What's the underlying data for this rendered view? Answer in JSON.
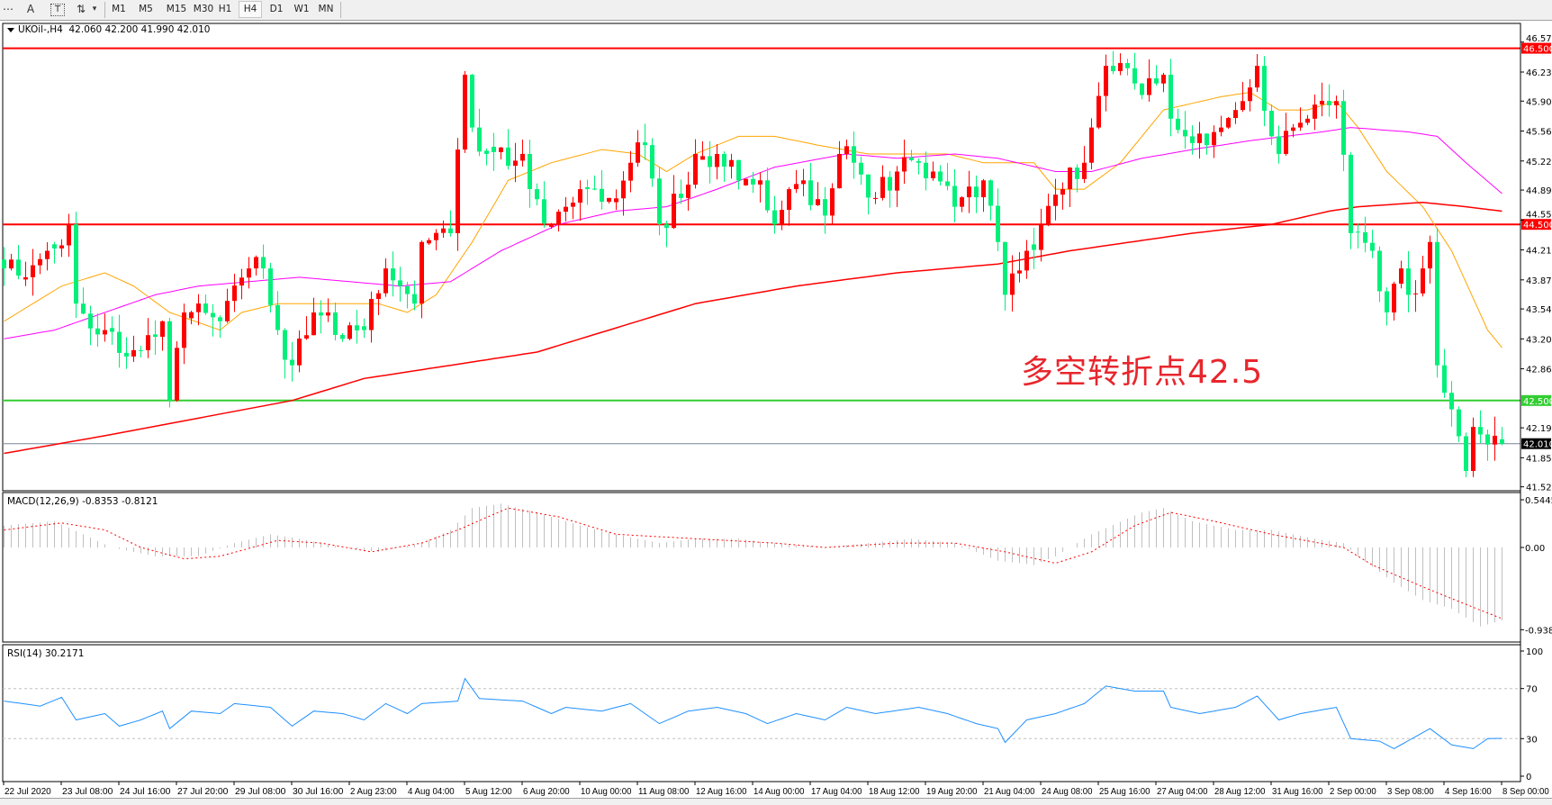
{
  "toolbar": {
    "tools": [
      {
        "icon": "period-separator-icon",
        "glyph": "⋯"
      },
      {
        "icon": "text-tool-icon",
        "glyph": "A"
      },
      {
        "icon": "text-label-tool-icon",
        "glyph": "T"
      },
      {
        "icon": "arrows-tool-icon",
        "glyph": "⇅"
      },
      {
        "icon": "dropdown-arrow-icon",
        "glyph": "▾"
      }
    ],
    "periods": [
      "M1",
      "M5",
      "M15",
      "M30",
      "H1",
      "H4",
      "D1",
      "W1",
      "MN"
    ],
    "active_period": "H4"
  },
  "chart": {
    "symbol": "UKOil-,H4",
    "ohlc_text": "42.060 42.200 41.990 42.010",
    "annotation": "多空转折点42.5",
    "macd_label": "MACD(12,26,9) -0.8353 -0.8121",
    "rsi_label": "RSI(14) 30.2171"
  },
  "chart_data": {
    "type": "candlestick",
    "instrument": "UKOil-",
    "timeframe": "H4",
    "colors": {
      "up": "#ff0000",
      "down": "#00f07a",
      "ma_fast": "#ffa500",
      "ma_mid": "#ff00ff",
      "ma_slow": "#ff0000",
      "rsi": "#1e90ff",
      "macd_hist": "#c0c0c0",
      "macd_signal": "#ff0000",
      "support": "#32cd32",
      "resistance": "#ff0000",
      "bid": "#778899"
    },
    "price_axis": {
      "min": 41.52,
      "max": 46.57,
      "ticks": [
        "46.570",
        "46.230",
        "45.900",
        "45.560",
        "45.220",
        "44.890",
        "44.550",
        "44.210",
        "43.870",
        "43.540",
        "43.200",
        "42.860",
        "42.190",
        "41.850",
        "41.520"
      ]
    },
    "time_axis": {
      "bars": 209,
      "bars_per_label": 8,
      "labels": [
        "22 Jul 2020",
        "23 Jul 08:00",
        "24 Jul 16:00",
        "27 Jul 20:00",
        "29 Jul 08:00",
        "30 Jul 16:00",
        "2 Aug 23:00",
        "4 Aug 04:00",
        "5 Aug 12:00",
        "6 Aug 20:00",
        "10 Aug 00:00",
        "11 Aug 08:00",
        "12 Aug 16:00",
        "14 Aug 00:00",
        "17 Aug 04:00",
        "18 Aug 12:00",
        "19 Aug 20:00",
        "21 Aug 04:00",
        "24 Aug 08:00",
        "25 Aug 16:00",
        "27 Aug 04:00",
        "28 Aug 12:00",
        "31 Aug 16:00",
        "2 Sep 00:00",
        "3 Sep 08:00",
        "4 Sep 16:00",
        "8 Sep 00:00"
      ]
    },
    "horizontal_lines": [
      {
        "price": 46.5,
        "label": "46.500",
        "kind": "resistance"
      },
      {
        "price": 44.5,
        "label": "44.500",
        "kind": "resistance"
      },
      {
        "price": 42.5,
        "label": "42.500",
        "kind": "support"
      },
      {
        "price": 42.01,
        "label": "42.010",
        "kind": "bid"
      }
    ],
    "close_path": [
      [
        0,
        44.0
      ],
      [
        1,
        44.1
      ],
      [
        3,
        43.9
      ],
      [
        6,
        44.2
      ],
      [
        9,
        44.5
      ],
      [
        10,
        43.6
      ],
      [
        14,
        43.3
      ],
      [
        17,
        43.0
      ],
      [
        22,
        43.4
      ],
      [
        23,
        42.5
      ],
      [
        25,
        43.5
      ],
      [
        30,
        43.4
      ],
      [
        34,
        44.0
      ],
      [
        36,
        44.0
      ],
      [
        38,
        43.3
      ],
      [
        40,
        42.9
      ],
      [
        43,
        43.5
      ],
      [
        45,
        43.5
      ],
      [
        47,
        43.2
      ],
      [
        50,
        43.3
      ],
      [
        53,
        44.0
      ],
      [
        55,
        43.8
      ],
      [
        57,
        43.6
      ],
      [
        58,
        44.3
      ],
      [
        62,
        44.4
      ],
      [
        64,
        46.2
      ],
      [
        65,
        45.6
      ],
      [
        67,
        45.3
      ],
      [
        72,
        45.3
      ],
      [
        73,
        44.9
      ],
      [
        76,
        44.5
      ],
      [
        78,
        44.7
      ],
      [
        81,
        44.9
      ],
      [
        84,
        44.8
      ],
      [
        87,
        45.2
      ],
      [
        89,
        45.4
      ],
      [
        91,
        44.5
      ],
      [
        94,
        44.8
      ],
      [
        96,
        45.3
      ],
      [
        99,
        45.3
      ],
      [
        102,
        45.0
      ],
      [
        105,
        45.0
      ],
      [
        107,
        44.5
      ],
      [
        109,
        44.9
      ],
      [
        111,
        45.0
      ],
      [
        114,
        44.6
      ],
      [
        116,
        45.3
      ],
      [
        118,
        45.2
      ],
      [
        121,
        44.8
      ],
      [
        124,
        45.1
      ],
      [
        127,
        45.2
      ],
      [
        129,
        45.1
      ],
      [
        132,
        44.7
      ],
      [
        136,
        45.0
      ],
      [
        138,
        44.3
      ],
      [
        139,
        43.7
      ],
      [
        142,
        44.2
      ],
      [
        144,
        44.5
      ],
      [
        147,
        44.9
      ],
      [
        150,
        45.2
      ],
      [
        151,
        45.6
      ],
      [
        153,
        46.3
      ],
      [
        157,
        46.1
      ],
      [
        160,
        46.1
      ],
      [
        161,
        46.2
      ],
      [
        162,
        45.7
      ],
      [
        164,
        45.5
      ],
      [
        167,
        45.4
      ],
      [
        169,
        45.6
      ],
      [
        172,
        45.9
      ],
      [
        174,
        46.3
      ],
      [
        176,
        45.5
      ],
      [
        177,
        45.3
      ],
      [
        179,
        45.6
      ],
      [
        181,
        45.7
      ],
      [
        185,
        45.9
      ],
      [
        187,
        44.4
      ],
      [
        190,
        44.2
      ],
      [
        192,
        43.5
      ],
      [
        194,
        44.0
      ],
      [
        195,
        43.7
      ],
      [
        197,
        44.0
      ],
      [
        198,
        44.3
      ],
      [
        199,
        42.9
      ],
      [
        201,
        42.4
      ],
      [
        203,
        41.7
      ],
      [
        204,
        42.2
      ],
      [
        206,
        42.0
      ],
      [
        207,
        42.1
      ],
      [
        208,
        42.01
      ]
    ],
    "last_bar": {
      "open": 42.06,
      "high": 42.2,
      "low": 41.99,
      "close": 42.01
    },
    "ma_fast": [
      [
        0,
        43.4
      ],
      [
        8,
        43.8
      ],
      [
        14,
        43.95
      ],
      [
        18,
        43.8
      ],
      [
        23,
        43.5
      ],
      [
        30,
        43.3
      ],
      [
        33,
        43.5
      ],
      [
        38,
        43.6
      ],
      [
        45,
        43.6
      ],
      [
        52,
        43.6
      ],
      [
        56,
        43.5
      ],
      [
        60,
        43.7
      ],
      [
        65,
        44.3
      ],
      [
        70,
        45.0
      ],
      [
        76,
        45.2
      ],
      [
        83,
        45.35
      ],
      [
        88,
        45.3
      ],
      [
        92,
        45.1
      ],
      [
        96,
        45.3
      ],
      [
        102,
        45.5
      ],
      [
        107,
        45.5
      ],
      [
        113,
        45.4
      ],
      [
        120,
        45.3
      ],
      [
        131,
        45.3
      ],
      [
        136,
        45.2
      ],
      [
        143,
        45.2
      ],
      [
        146,
        44.9
      ],
      [
        150,
        44.9
      ],
      [
        155,
        45.2
      ],
      [
        161,
        45.8
      ],
      [
        169,
        45.95
      ],
      [
        173,
        46.0
      ],
      [
        177,
        45.8
      ],
      [
        181,
        45.8
      ],
      [
        185,
        45.9
      ],
      [
        188,
        45.6
      ],
      [
        192,
        45.1
      ],
      [
        197,
        44.7
      ],
      [
        201,
        44.2
      ],
      [
        206,
        43.3
      ],
      [
        208,
        43.1
      ]
    ],
    "ma_mid": [
      [
        0,
        43.2
      ],
      [
        7,
        43.3
      ],
      [
        14,
        43.5
      ],
      [
        21,
        43.7
      ],
      [
        27,
        43.8
      ],
      [
        41,
        43.9
      ],
      [
        55,
        43.8
      ],
      [
        62,
        43.85
      ],
      [
        69,
        44.2
      ],
      [
        77,
        44.5
      ],
      [
        85,
        44.65
      ],
      [
        92,
        44.7
      ],
      [
        99,
        44.9
      ],
      [
        107,
        45.15
      ],
      [
        117,
        45.3
      ],
      [
        124,
        45.25
      ],
      [
        132,
        45.3
      ],
      [
        138,
        45.25
      ],
      [
        146,
        45.1
      ],
      [
        151,
        45.1
      ],
      [
        158,
        45.25
      ],
      [
        165,
        45.35
      ],
      [
        173,
        45.45
      ],
      [
        183,
        45.55
      ],
      [
        187,
        45.6
      ],
      [
        195,
        45.55
      ],
      [
        199,
        45.5
      ],
      [
        203,
        45.2
      ],
      [
        208,
        44.85
      ]
    ],
    "ma_slow": [
      [
        0,
        41.9
      ],
      [
        14,
        42.1
      ],
      [
        27,
        42.3
      ],
      [
        40,
        42.5
      ],
      [
        50,
        42.75
      ],
      [
        62,
        42.9
      ],
      [
        74,
        43.05
      ],
      [
        88,
        43.4
      ],
      [
        96,
        43.6
      ],
      [
        110,
        43.8
      ],
      [
        124,
        43.95
      ],
      [
        138,
        44.05
      ],
      [
        148,
        44.2
      ],
      [
        165,
        44.4
      ],
      [
        176,
        44.5
      ],
      [
        184,
        44.65
      ],
      [
        188,
        44.7
      ],
      [
        197,
        44.75
      ],
      [
        203,
        44.7
      ],
      [
        208,
        44.65
      ]
    ],
    "macd": {
      "params": "12,26,9",
      "axis": {
        "max": 0.5445,
        "zero": "0.00",
        "min": -0.9389,
        "tick_labels": [
          "0.5445",
          "0.00",
          "-0.9389"
        ]
      },
      "histogram": [
        [
          0,
          0.25
        ],
        [
          7,
          0.3
        ],
        [
          11,
          0.15
        ],
        [
          15,
          0.0
        ],
        [
          21,
          -0.1
        ],
        [
          27,
          -0.1
        ],
        [
          32,
          0.05
        ],
        [
          37,
          0.15
        ],
        [
          41,
          0.1
        ],
        [
          47,
          0.0
        ],
        [
          52,
          -0.05
        ],
        [
          58,
          0.05
        ],
        [
          62,
          0.2
        ],
        [
          65,
          0.45
        ],
        [
          69,
          0.5
        ],
        [
          74,
          0.4
        ],
        [
          80,
          0.25
        ],
        [
          85,
          0.15
        ],
        [
          91,
          0.05
        ],
        [
          96,
          0.1
        ],
        [
          102,
          0.1
        ],
        [
          107,
          0.05
        ],
        [
          114,
          0.0
        ],
        [
          120,
          0.05
        ],
        [
          126,
          0.1
        ],
        [
          132,
          0.05
        ],
        [
          138,
          -0.15
        ],
        [
          143,
          -0.2
        ],
        [
          146,
          -0.1
        ],
        [
          151,
          0.15
        ],
        [
          158,
          0.4
        ],
        [
          161,
          0.45
        ],
        [
          165,
          0.3
        ],
        [
          171,
          0.2
        ],
        [
          176,
          0.2
        ],
        [
          182,
          0.1
        ],
        [
          186,
          0.05
        ],
        [
          188,
          -0.1
        ],
        [
          193,
          -0.4
        ],
        [
          197,
          -0.6
        ],
        [
          201,
          -0.7
        ],
        [
          205,
          -0.9
        ],
        [
          208,
          -0.8353
        ]
      ],
      "signal": [
        [
          0,
          0.2
        ],
        [
          8,
          0.28
        ],
        [
          14,
          0.2
        ],
        [
          19,
          0.0
        ],
        [
          25,
          -0.13
        ],
        [
          30,
          -0.1
        ],
        [
          38,
          0.08
        ],
        [
          44,
          0.05
        ],
        [
          51,
          -0.05
        ],
        [
          58,
          0.05
        ],
        [
          63,
          0.2
        ],
        [
          70,
          0.45
        ],
        [
          77,
          0.35
        ],
        [
          85,
          0.15
        ],
        [
          96,
          0.1
        ],
        [
          107,
          0.05
        ],
        [
          114,
          0.0
        ],
        [
          124,
          0.05
        ],
        [
          132,
          0.05
        ],
        [
          139,
          -0.05
        ],
        [
          146,
          -0.18
        ],
        [
          151,
          -0.05
        ],
        [
          157,
          0.25
        ],
        [
          162,
          0.4
        ],
        [
          168,
          0.3
        ],
        [
          176,
          0.15
        ],
        [
          186,
          0.0
        ],
        [
          190,
          -0.2
        ],
        [
          197,
          -0.45
        ],
        [
          203,
          -0.65
        ],
        [
          208,
          -0.8121
        ]
      ]
    },
    "rsi": {
      "period": 14,
      "axis": {
        "min": 0,
        "max": 100,
        "levels": [
          70,
          30
        ],
        "tick_labels": [
          "100",
          "70",
          "30",
          "0"
        ]
      },
      "values": [
        [
          0,
          60
        ],
        [
          5,
          56
        ],
        [
          8,
          63
        ],
        [
          10,
          45
        ],
        [
          14,
          50
        ],
        [
          16,
          40
        ],
        [
          19,
          45
        ],
        [
          22,
          52
        ],
        [
          23,
          38
        ],
        [
          26,
          52
        ],
        [
          30,
          50
        ],
        [
          32,
          58
        ],
        [
          37,
          55
        ],
        [
          40,
          40
        ],
        [
          43,
          52
        ],
        [
          47,
          50
        ],
        [
          50,
          45
        ],
        [
          53,
          58
        ],
        [
          56,
          50
        ],
        [
          58,
          58
        ],
        [
          63,
          60
        ],
        [
          64,
          78
        ],
        [
          66,
          62
        ],
        [
          72,
          60
        ],
        [
          76,
          50
        ],
        [
          78,
          55
        ],
        [
          83,
          52
        ],
        [
          87,
          58
        ],
        [
          91,
          42
        ],
        [
          95,
          52
        ],
        [
          99,
          55
        ],
        [
          103,
          50
        ],
        [
          106,
          42
        ],
        [
          110,
          50
        ],
        [
          114,
          45
        ],
        [
          117,
          55
        ],
        [
          121,
          50
        ],
        [
          127,
          55
        ],
        [
          131,
          50
        ],
        [
          135,
          42
        ],
        [
          138,
          38
        ],
        [
          139,
          27
        ],
        [
          142,
          45
        ],
        [
          146,
          50
        ],
        [
          150,
          58
        ],
        [
          153,
          72
        ],
        [
          157,
          68
        ],
        [
          161,
          68
        ],
        [
          162,
          55
        ],
        [
          166,
          50
        ],
        [
          171,
          55
        ],
        [
          174,
          64
        ],
        [
          177,
          45
        ],
        [
          180,
          50
        ],
        [
          185,
          55
        ],
        [
          187,
          30
        ],
        [
          191,
          28
        ],
        [
          193,
          22
        ],
        [
          198,
          38
        ],
        [
          201,
          25
        ],
        [
          204,
          22
        ],
        [
          206,
          30
        ],
        [
          208,
          30.2171
        ]
      ]
    }
  }
}
